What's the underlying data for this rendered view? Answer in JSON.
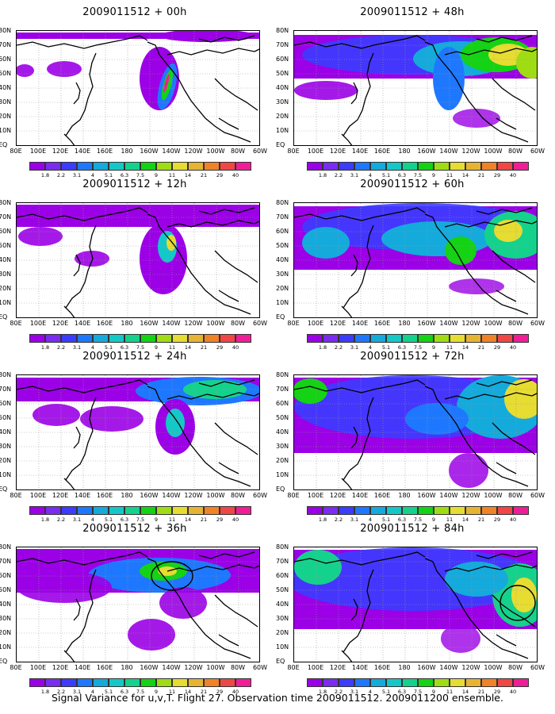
{
  "caption": "Signal Variance for u,v,T. Flight 27. Observation time 2009011512. 2009011200 ensemble.",
  "lat_labels": [
    "80N",
    "70N",
    "60N",
    "50N",
    "40N",
    "30N",
    "20N",
    "10N",
    "EQ"
  ],
  "lon_labels": [
    "80E",
    "100E",
    "120E",
    "140E",
    "160E",
    "180",
    "160W",
    "140W",
    "120W",
    "100W",
    "80W",
    "60W"
  ],
  "colorbar": {
    "labels": [
      "1.8",
      "2.2",
      "3.1",
      "4",
      "5.1",
      "6.3",
      "7.5",
      "9",
      "11",
      "14",
      "21",
      "29",
      "40"
    ],
    "colors": [
      "#9b00e6",
      "#7a2cf0",
      "#3c3cff",
      "#1e78ff",
      "#14aadc",
      "#14c8c8",
      "#14d28c",
      "#14d214",
      "#a0dc14",
      "#e6dc32",
      "#e6b432",
      "#f08228",
      "#f04646",
      "#f01e96"
    ]
  },
  "panels": [
    {
      "title": "2009011512 + 00h"
    },
    {
      "title": "2009011512 + 48h"
    },
    {
      "title": "2009011512 + 12h"
    },
    {
      "title": "2009011512 + 60h"
    },
    {
      "title": "2009011512 + 24h"
    },
    {
      "title": "2009011512 + 72h"
    },
    {
      "title": "2009011512 + 36h"
    },
    {
      "title": "2009011512 + 84h"
    }
  ]
}
